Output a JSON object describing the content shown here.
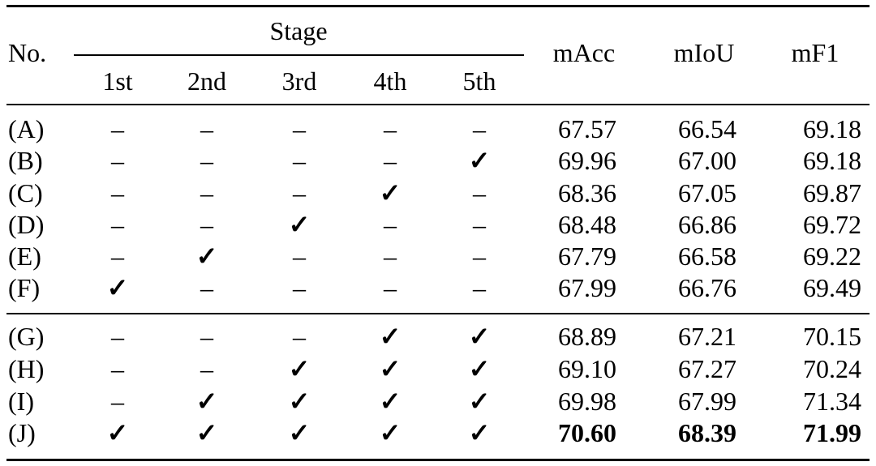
{
  "table": {
    "header": {
      "no": "No.",
      "stage": "Stage",
      "stages": [
        "1st",
        "2nd",
        "3rd",
        "4th",
        "5th"
      ],
      "metrics": [
        "mAcc",
        "mIoU",
        "mF1"
      ]
    },
    "rows": [
      {
        "id": "(A)",
        "marks": [
          "–",
          "–",
          "–",
          "–",
          "–"
        ],
        "mAcc": "67.57",
        "mIoU": "66.54",
        "mF1": "69.18"
      },
      {
        "id": "(B)",
        "marks": [
          "–",
          "–",
          "–",
          "–",
          "✓"
        ],
        "mAcc": "69.96",
        "mIoU": "67.00",
        "mF1": "69.18"
      },
      {
        "id": "(C)",
        "marks": [
          "–",
          "–",
          "–",
          "✓",
          "–"
        ],
        "mAcc": "68.36",
        "mIoU": "67.05",
        "mF1": "69.87"
      },
      {
        "id": "(D)",
        "marks": [
          "–",
          "–",
          "✓",
          "–",
          "–"
        ],
        "mAcc": "68.48",
        "mIoU": "66.86",
        "mF1": "69.72"
      },
      {
        "id": "(E)",
        "marks": [
          "–",
          "✓",
          "–",
          "–",
          "–"
        ],
        "mAcc": "67.79",
        "mIoU": "66.58",
        "mF1": "69.22"
      },
      {
        "id": "(F)",
        "marks": [
          "✓",
          "–",
          "–",
          "–",
          "–"
        ],
        "mAcc": "67.99",
        "mIoU": "66.76",
        "mF1": "69.49"
      },
      {
        "id": "(G)",
        "marks": [
          "–",
          "–",
          "–",
          "✓",
          "✓"
        ],
        "mAcc": "68.89",
        "mIoU": "67.21",
        "mF1": "70.15"
      },
      {
        "id": "(H)",
        "marks": [
          "–",
          "–",
          "✓",
          "✓",
          "✓"
        ],
        "mAcc": "69.10",
        "mIoU": "67.27",
        "mF1": "70.24"
      },
      {
        "id": "(I)",
        "marks": [
          "–",
          "✓",
          "✓",
          "✓",
          "✓"
        ],
        "mAcc": "69.98",
        "mIoU": "67.99",
        "mF1": "71.34"
      },
      {
        "id": "(J)",
        "marks": [
          "✓",
          "✓",
          "✓",
          "✓",
          "✓"
        ],
        "mAcc": "70.60",
        "mIoU": "68.39",
        "mF1": "71.99",
        "bold": true
      }
    ]
  }
}
